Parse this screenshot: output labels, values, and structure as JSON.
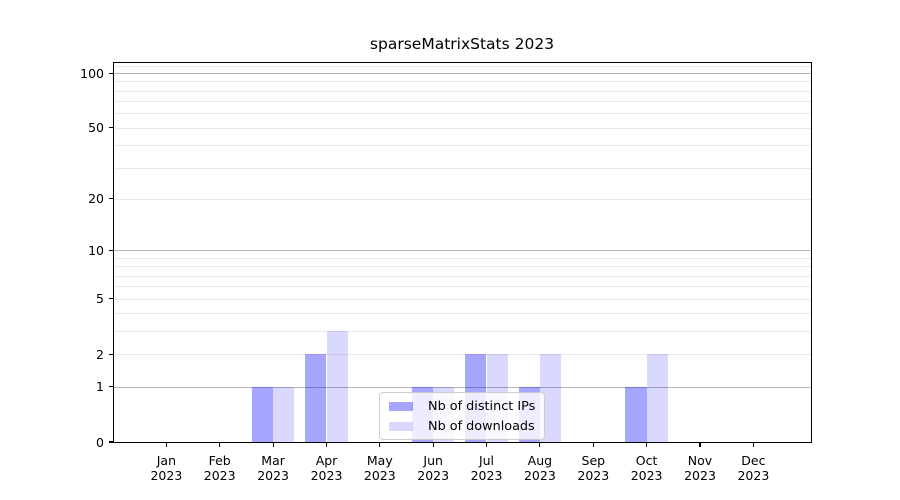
{
  "chart_data": {
    "type": "bar",
    "title": "sparseMatrixStats 2023",
    "categories": [
      "Jan 2023",
      "Feb 2023",
      "Mar 2023",
      "Apr 2023",
      "May 2023",
      "Jun 2023",
      "Jul 2023",
      "Aug 2023",
      "Sep 2023",
      "Oct 2023",
      "Nov 2023",
      "Dec 2023"
    ],
    "series": [
      {
        "name": "Nb of distinct IPs",
        "color": "#0000ff",
        "alpha": 0.35,
        "values": [
          0,
          0,
          1,
          2,
          0,
          1,
          2,
          1,
          0,
          1,
          0,
          0
        ]
      },
      {
        "name": "Nb of downloads",
        "color": "#0000ff",
        "alpha": 0.15,
        "values": [
          0,
          0,
          1,
          3,
          0,
          1,
          2,
          2,
          0,
          2,
          0,
          0
        ]
      }
    ],
    "xlabel": "",
    "ylabel": "",
    "yscale": "log1p",
    "ylim": [
      0,
      115
    ],
    "yticks": [
      0,
      1,
      2,
      5,
      10,
      20,
      50,
      100
    ],
    "grid": {
      "major": [
        1,
        10,
        100
      ],
      "minor": [
        2,
        3,
        4,
        5,
        6,
        7,
        8,
        9,
        20,
        30,
        40,
        50,
        60,
        70,
        80,
        90,
        110
      ],
      "major_color": "#b5b5b5",
      "minor_color": "#e9e9e9"
    },
    "legend": {
      "position": "inside-bottom-center",
      "background": "#ffffff",
      "border_color": "#cccccc"
    },
    "bar_width_frac": 0.4,
    "axis_color": "#000000",
    "text_color": "#000000"
  }
}
